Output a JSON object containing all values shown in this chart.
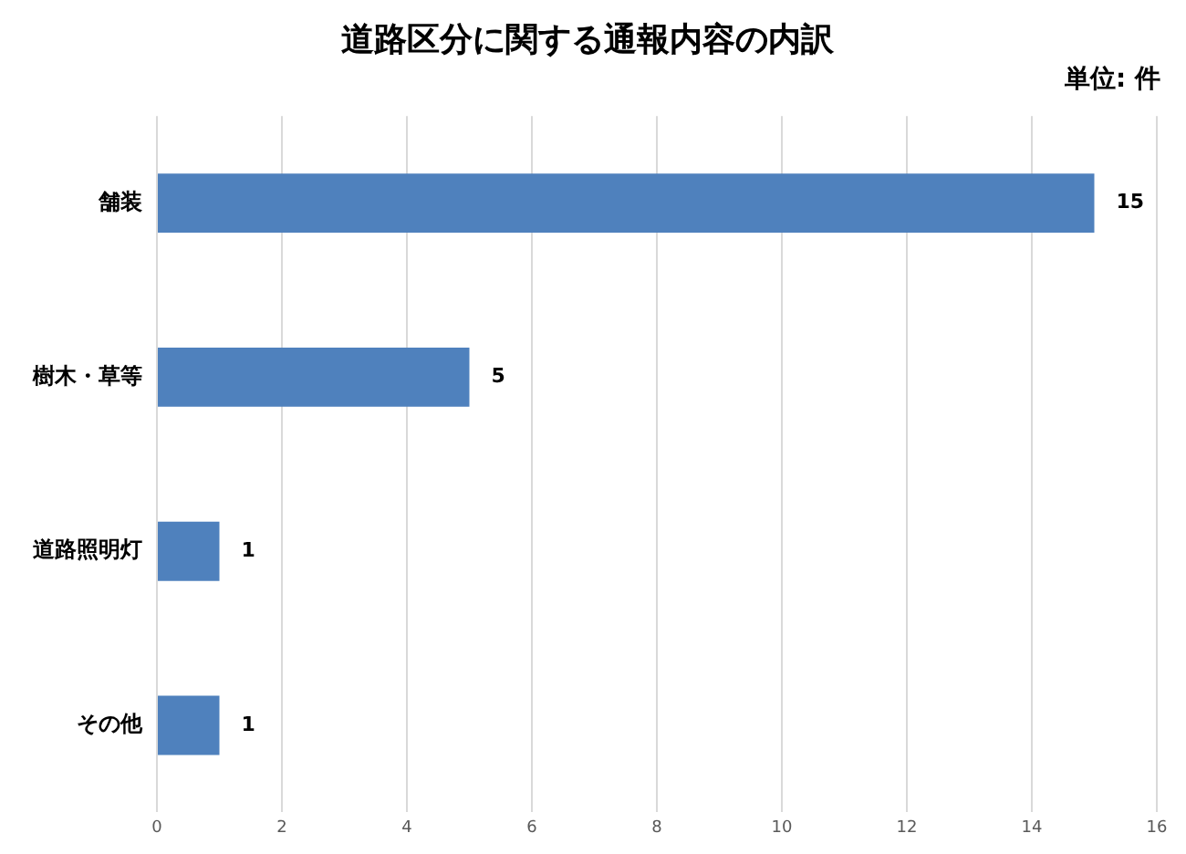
{
  "chart_data": {
    "type": "bar",
    "orientation": "horizontal",
    "title": "道路区分に関する通報内容の内訳",
    "annotations": [
      "単位: 件"
    ],
    "categories": [
      "舗装",
      "樹木・草等",
      "道路照明灯",
      "その他"
    ],
    "values": [
      15,
      5,
      1,
      1
    ],
    "color": "#4f81bd",
    "xlim": [
      0,
      16
    ],
    "xticks": [
      0,
      2,
      4,
      6,
      8,
      10,
      12,
      14,
      16
    ],
    "grid": "x",
    "data_labels": true
  }
}
